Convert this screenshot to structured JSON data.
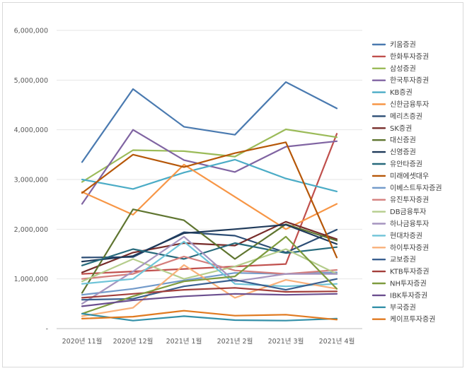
{
  "chart_data": {
    "type": "line",
    "title": "",
    "xlabel": "",
    "ylabel": "",
    "ylim": [
      0,
      6000000
    ],
    "yticks": [
      0,
      1000000,
      2000000,
      3000000,
      4000000,
      5000000,
      6000000
    ],
    "ytick_labels": [
      "-",
      "1,000,000",
      "2,000,000",
      "3,000,000",
      "4,000,000",
      "5,000,000",
      "6,000,000"
    ],
    "grid": true,
    "legend_position": "right",
    "categories": [
      "2020년 11월",
      "2020년 12월",
      "2021년 1월",
      "2021년 2월",
      "2021년 3월",
      "2021년 4월"
    ],
    "series": [
      {
        "name": "키움증권",
        "color": "#4a7ab0",
        "values": [
          3350000,
          4820000,
          4060000,
          3900000,
          4960000,
          4430000
        ]
      },
      {
        "name": "한화투자증권",
        "color": "#c0504d",
        "values": [
          1100000,
          1150000,
          1200000,
          1250000,
          1300000,
          3920000
        ]
      },
      {
        "name": "삼성증권",
        "color": "#9bbb59",
        "values": [
          2950000,
          3590000,
          3570000,
          3460000,
          4010000,
          3850000
        ]
      },
      {
        "name": "한국투자증권",
        "color": "#8064a2",
        "values": [
          2510000,
          4000000,
          3390000,
          3150000,
          3660000,
          3770000
        ]
      },
      {
        "name": "KB증권",
        "color": "#4bacc6",
        "values": [
          3000000,
          2810000,
          3140000,
          3400000,
          3020000,
          2760000
        ]
      },
      {
        "name": "신한금융투자",
        "color": "#f79646",
        "values": [
          2750000,
          2290000,
          3300000,
          2650000,
          2000000,
          2510000
        ]
      },
      {
        "name": "메리츠증권",
        "color": "#2c4d75",
        "values": [
          1430000,
          1440000,
          1940000,
          1870000,
          1530000,
          1990000
        ]
      },
      {
        "name": "SK증권",
        "color": "#772c2a",
        "values": [
          1130000,
          1530000,
          1720000,
          1670000,
          2150000,
          1800000
        ]
      },
      {
        "name": "대신증권",
        "color": "#5f7530",
        "values": [
          720000,
          2400000,
          2180000,
          1400000,
          2100000,
          1770000
        ]
      },
      {
        "name": "신영증권",
        "color": "#1f3a5a",
        "values": [
          1350000,
          1460000,
          1920000,
          2000000,
          2090000,
          1700000
        ]
      },
      {
        "name": "유안타증권",
        "color": "#276a7c",
        "values": [
          1270000,
          1600000,
          1400000,
          1720000,
          1520000,
          1640000
        ]
      },
      {
        "name": "미래에셋대우",
        "color": "#b65708",
        "values": [
          2730000,
          3500000,
          3250000,
          3530000,
          3750000,
          1430000
        ]
      },
      {
        "name": "이베스트투자증권",
        "color": "#729aca",
        "values": [
          680000,
          800000,
          970000,
          1120000,
          1100000,
          1130000
        ]
      },
      {
        "name": "유진투자증권",
        "color": "#d47e7c",
        "values": [
          1000000,
          1100000,
          1450000,
          1170000,
          1100000,
          1180000
        ]
      },
      {
        "name": "DB금융투자",
        "color": "#b5cd8c",
        "values": [
          950000,
          1400000,
          1000000,
          1250000,
          1600000,
          1100000
        ]
      },
      {
        "name": "하나금융투자",
        "color": "#a594bf",
        "values": [
          500000,
          1150000,
          1850000,
          950000,
          1100000,
          1100000
        ]
      },
      {
        "name": "현대차증권",
        "color": "#6fc4d8",
        "values": [
          900000,
          1000000,
          1750000,
          900000,
          850000,
          900000
        ]
      },
      {
        "name": "하이투자증권",
        "color": "#f9b07a",
        "values": [
          250000,
          420000,
          1280000,
          620000,
          980000,
          800000
        ]
      },
      {
        "name": "교보증권",
        "color": "#3a5f8f",
        "values": [
          580000,
          600000,
          850000,
          980000,
          780000,
          1000000
        ]
      },
      {
        "name": "KTB투자증권",
        "color": "#a33e3a",
        "values": [
          620000,
          700000,
          780000,
          820000,
          740000,
          750000
        ]
      },
      {
        "name": "NH투자증권",
        "color": "#7e9b3e",
        "values": [
          300000,
          650000,
          950000,
          1050000,
          1850000,
          800000
        ]
      },
      {
        "name": "IBK투자증권",
        "color": "#6b4f8f",
        "values": [
          450000,
          570000,
          650000,
          700000,
          680000,
          700000
        ]
      },
      {
        "name": "부국증권",
        "color": "#3490a8",
        "values": [
          300000,
          160000,
          250000,
          170000,
          160000,
          200000
        ]
      },
      {
        "name": "케이프투자증권",
        "color": "#e07a20",
        "values": [
          200000,
          240000,
          360000,
          260000,
          280000,
          180000
        ]
      }
    ]
  }
}
